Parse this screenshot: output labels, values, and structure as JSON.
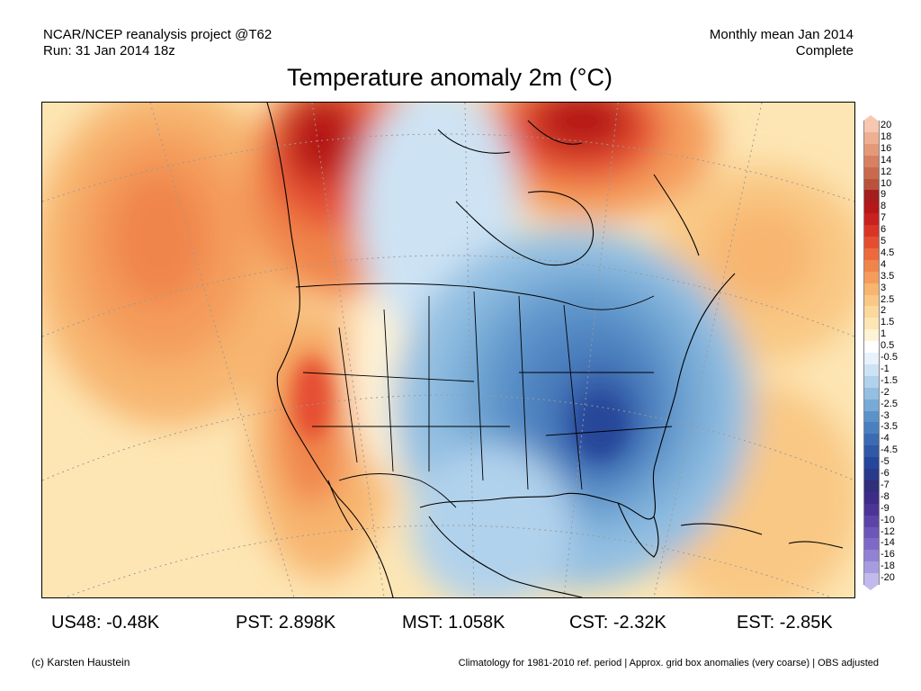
{
  "header": {
    "left_line1": "NCAR/NCEP reanalysis project @T62",
    "left_line2": "Run: 31 Jan 2014 18z",
    "right_line1": "Monthly mean Jan 2014",
    "right_line2": "Complete"
  },
  "title": "Temperature anomaly 2m (°C)",
  "legend": {
    "labels": [
      "20",
      "18",
      "16",
      "14",
      "12",
      "10",
      "9",
      "8",
      "7",
      "6",
      "5",
      "4.5",
      "4",
      "3.5",
      "3",
      "2.5",
      "2",
      "1.5",
      "1",
      "0.5",
      "-0.5",
      "-1",
      "-1.5",
      "-2",
      "-2.5",
      "-3",
      "-3.5",
      "-4",
      "-4.5",
      "-5",
      "-6",
      "-7",
      "-8",
      "-9",
      "-10",
      "-12",
      "-14",
      "-16",
      "-18",
      "-20"
    ],
    "colors": [
      "#f7c8b0",
      "#eeb091",
      "#e49a78",
      "#d78062",
      "#c96a4f",
      "#b9523d",
      "#a51d1d",
      "#b51818",
      "#c92020",
      "#d93526",
      "#e54d30",
      "#ec6a3c",
      "#f0854c",
      "#f49c5c",
      "#f7b56f",
      "#f9c884",
      "#fbd89c",
      "#fde6b4",
      "#fff3d6",
      "#ffffff",
      "#e8f2fb",
      "#cde3f4",
      "#b1d2ec",
      "#93bfe2",
      "#77aad6",
      "#5b93c9",
      "#4b7fbe",
      "#3c6ab3",
      "#3058a6",
      "#25479a",
      "#2a3a8a",
      "#312e7a",
      "#3d2c87",
      "#4b3496",
      "#5c43a8",
      "#6c56b8",
      "#7e6ac6",
      "#9282d4",
      "#a89ce0",
      "#c2b9ec"
    ]
  },
  "stats": [
    {
      "label": "US48:",
      "value": "-0.48K"
    },
    {
      "label": "PST:",
      "value": "2.898K"
    },
    {
      "label": "MST:",
      "value": "1.058K"
    },
    {
      "label": "CST:",
      "value": "-2.32K"
    },
    {
      "label": "EST:",
      "value": "-2.85K"
    }
  ],
  "footer": {
    "left": "(c) Karsten Haustein",
    "right": "Climatology for 1981-2010 ref. period | Approx. grid box anomalies (very coarse) | OBS adjusted"
  }
}
